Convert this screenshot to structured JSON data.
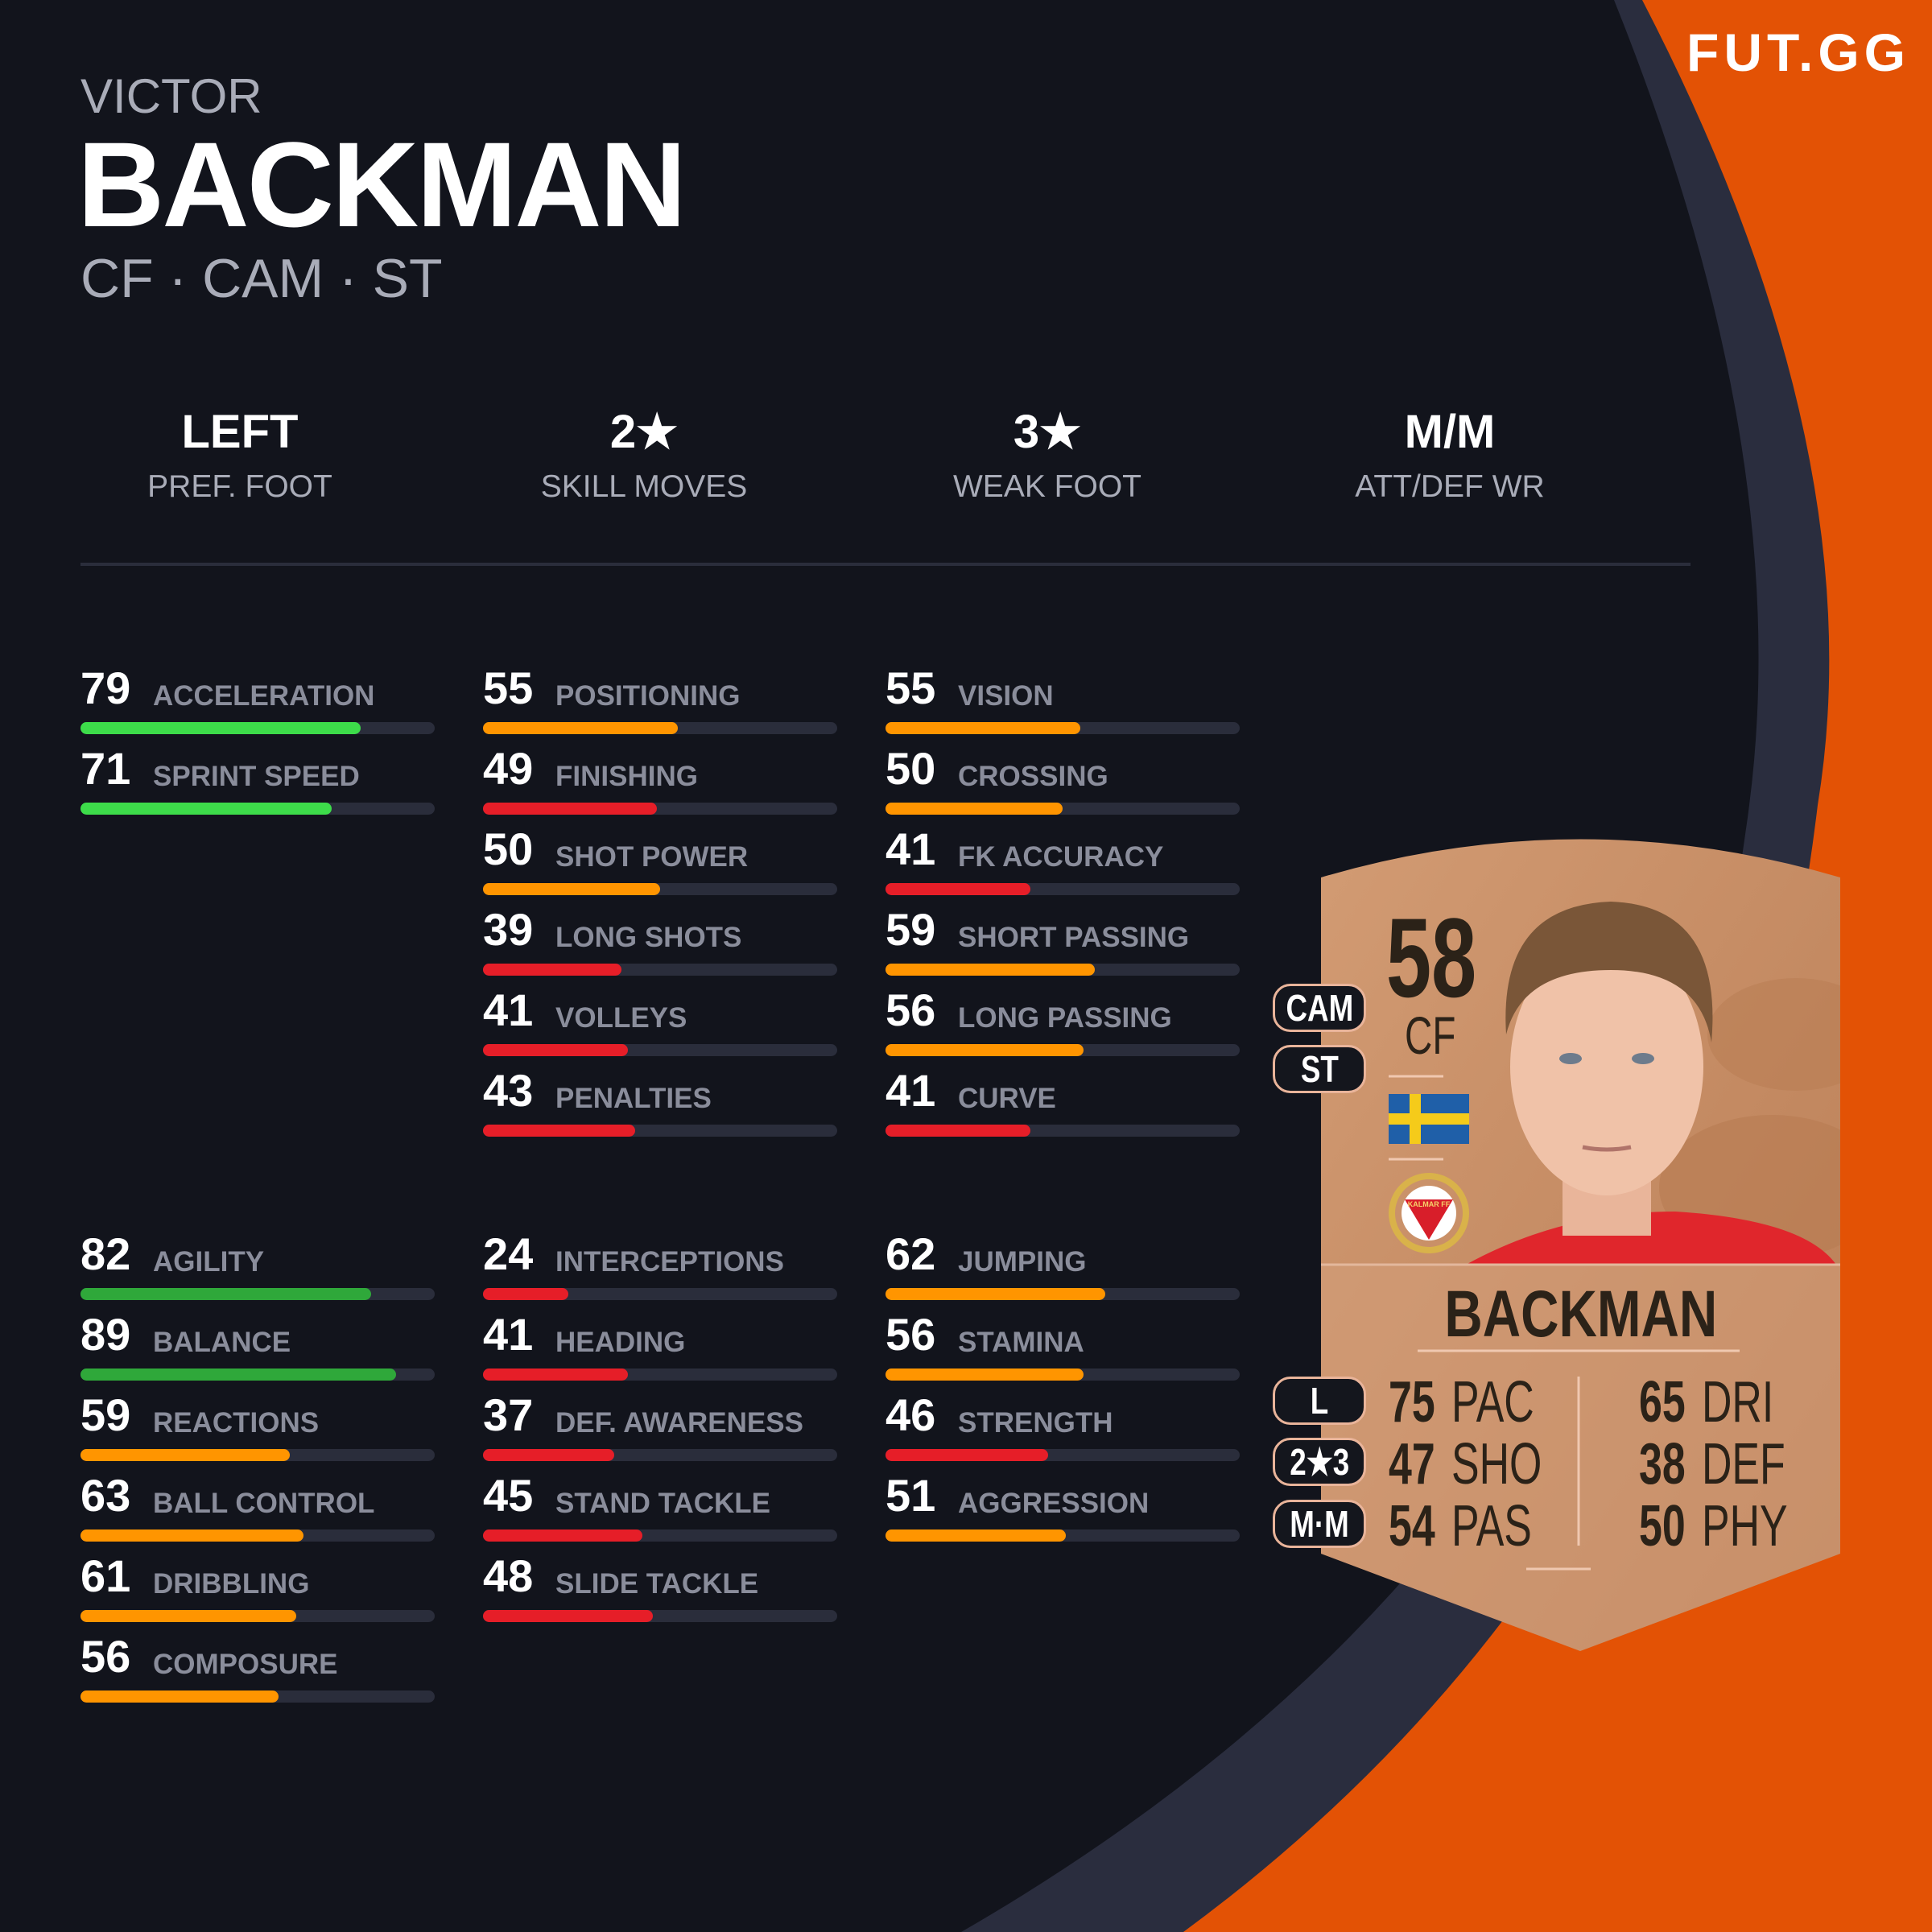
{
  "brand": {
    "logo": "FUT.GG",
    "accent": "#e35205",
    "background": "#12141c",
    "ring": "#2a2d3e"
  },
  "player": {
    "first_name": "VICTOR",
    "last_name": "BACKMAN",
    "positions": "CF · CAM · ST"
  },
  "attributes": [
    {
      "value": "LEFT",
      "label": "PREF. FOOT"
    },
    {
      "value": "2★",
      "label": "SKILL MOVES"
    },
    {
      "value": "3★",
      "label": "WEAK FOOT"
    },
    {
      "value": "M/M",
      "label": "ATT/DEF WR"
    }
  ],
  "stat_colors": {
    "elite": "#2fa83a",
    "high": "#3ddc4a",
    "mid": "#ff9500",
    "low": "#e61e28"
  },
  "stats_top": [
    [
      {
        "value": 79,
        "label": "ACCELERATION"
      },
      {
        "value": 71,
        "label": "SPRINT SPEED"
      }
    ],
    [
      {
        "value": 55,
        "label": "POSITIONING"
      },
      {
        "value": 49,
        "label": "FINISHING"
      },
      {
        "value": 50,
        "label": "SHOT POWER"
      },
      {
        "value": 39,
        "label": "LONG SHOTS"
      },
      {
        "value": 41,
        "label": "VOLLEYS"
      },
      {
        "value": 43,
        "label": "PENALTIES"
      }
    ],
    [
      {
        "value": 55,
        "label": "VISION"
      },
      {
        "value": 50,
        "label": "CROSSING"
      },
      {
        "value": 41,
        "label": "FK ACCURACY"
      },
      {
        "value": 59,
        "label": "SHORT PASSING"
      },
      {
        "value": 56,
        "label": "LONG PASSING"
      },
      {
        "value": 41,
        "label": "CURVE"
      }
    ]
  ],
  "stats_bottom": [
    [
      {
        "value": 82,
        "label": "AGILITY"
      },
      {
        "value": 89,
        "label": "BALANCE"
      },
      {
        "value": 59,
        "label": "REACTIONS"
      },
      {
        "value": 63,
        "label": "BALL CONTROL"
      },
      {
        "value": 61,
        "label": "DRIBBLING"
      },
      {
        "value": 56,
        "label": "COMPOSURE"
      }
    ],
    [
      {
        "value": 24,
        "label": "INTERCEPTIONS"
      },
      {
        "value": 41,
        "label": "HEADING"
      },
      {
        "value": 37,
        "label": "DEF. AWARENESS"
      },
      {
        "value": 45,
        "label": "STAND TACKLE"
      },
      {
        "value": 48,
        "label": "SLIDE TACKLE"
      }
    ],
    [
      {
        "value": 62,
        "label": "JUMPING"
      },
      {
        "value": 56,
        "label": "STAMINA"
      },
      {
        "value": 46,
        "label": "STRENGTH"
      },
      {
        "value": 51,
        "label": "AGGRESSION"
      }
    ]
  ],
  "card": {
    "rating": "58",
    "position": "CF",
    "name": "BACKMAN",
    "nation_flag": "sweden-flag",
    "club_badge": "kalmar-ff-badge",
    "club_badge_text": "KALMAR FF",
    "alt_positions": [
      "CAM",
      "ST"
    ],
    "info_pills": [
      "L",
      "2★3",
      "M·M"
    ],
    "face_stats_left": [
      {
        "value": "75",
        "label": "PAC"
      },
      {
        "value": "47",
        "label": "SHO"
      },
      {
        "value": "54",
        "label": "PAS"
      }
    ],
    "face_stats_right": [
      {
        "value": "65",
        "label": "DRI"
      },
      {
        "value": "38",
        "label": "DEF"
      },
      {
        "value": "50",
        "label": "PHY"
      }
    ],
    "card_color": "#c9916a"
  }
}
